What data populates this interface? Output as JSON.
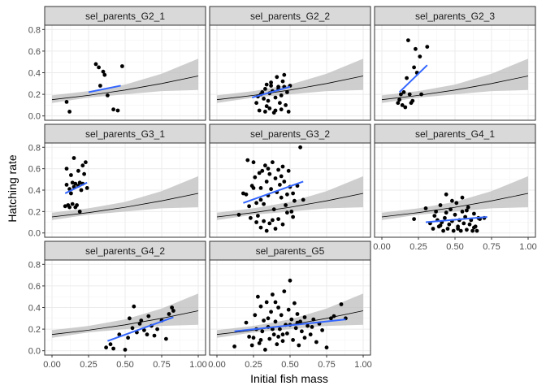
{
  "chart_data": {
    "type": "scatter",
    "xlabel": "Initial fish mass",
    "ylabel": "Hatching rate",
    "xlim": [
      0.0,
      1.0
    ],
    "ylim": [
      0.0,
      0.8
    ],
    "x_ticks": [
      0.0,
      0.25,
      0.5,
      0.75,
      1.0
    ],
    "x_tick_labels": [
      "0.00",
      "0.25",
      "0.50",
      "0.75",
      "1.00"
    ],
    "y_ticks": [
      0.0,
      0.2,
      0.4,
      0.6,
      0.8
    ],
    "y_tick_labels": [
      "0.0",
      "0.2",
      "0.4",
      "0.6",
      "0.8"
    ],
    "grid": true,
    "colors": {
      "points": "#000000",
      "group_fit": "#3366FF",
      "overall_fit": "#000000",
      "ribbon": "#BEBEBE",
      "strip": "#D9D9D9"
    },
    "overall_fit": {
      "x": [
        0.0,
        0.25,
        0.5,
        0.75,
        1.0
      ],
      "y": [
        0.15,
        0.19,
        0.24,
        0.3,
        0.37
      ],
      "lower": [
        0.12,
        0.17,
        0.2,
        0.23,
        0.24
      ],
      "upper": [
        0.19,
        0.23,
        0.29,
        0.39,
        0.53
      ]
    },
    "panels": [
      {
        "name": "sel_parents_G2_1",
        "points": [
          [
            0.1,
            0.13
          ],
          [
            0.12,
            0.04
          ],
          [
            0.3,
            0.48
          ],
          [
            0.32,
            0.45
          ],
          [
            0.35,
            0.41
          ],
          [
            0.36,
            0.38
          ],
          [
            0.33,
            0.28
          ],
          [
            0.38,
            0.19
          ],
          [
            0.42,
            0.06
          ],
          [
            0.45,
            0.05
          ],
          [
            0.48,
            0.46
          ]
        ],
        "fit": [
          [
            0.25,
            0.22
          ],
          [
            0.47,
            0.28
          ]
        ]
      },
      {
        "name": "sel_parents_G2_2",
        "points": [
          [
            0.27,
            0.12
          ],
          [
            0.28,
            0.18
          ],
          [
            0.29,
            0.05
          ],
          [
            0.3,
            0.2
          ],
          [
            0.31,
            0.22
          ],
          [
            0.32,
            0.16
          ],
          [
            0.33,
            0.25
          ],
          [
            0.34,
            0.09
          ],
          [
            0.35,
            0.14
          ],
          [
            0.36,
            0.07
          ],
          [
            0.37,
            0.28
          ],
          [
            0.37,
            0.31
          ],
          [
            0.38,
            0.23
          ],
          [
            0.39,
            0.03
          ],
          [
            0.4,
            0.17
          ],
          [
            0.41,
            0.36
          ],
          [
            0.42,
            0.27
          ],
          [
            0.43,
            0.12
          ],
          [
            0.44,
            0.19
          ],
          [
            0.45,
            0.32
          ],
          [
            0.46,
            0.38
          ],
          [
            0.47,
            0.1
          ],
          [
            0.48,
            0.22
          ],
          [
            0.49,
            0.04
          ],
          [
            0.5,
            0.28
          ],
          [
            0.33,
            0.04
          ],
          [
            0.34,
            0.29
          ],
          [
            0.36,
            0.21
          ],
          [
            0.4,
            0.05
          ],
          [
            0.42,
            0.25
          ],
          [
            0.44,
            0.06
          ],
          [
            0.46,
            0.27
          ]
        ],
        "fit": [
          [
            0.24,
            0.17
          ],
          [
            0.5,
            0.27
          ]
        ]
      },
      {
        "name": "sel_parents_G2_3",
        "points": [
          [
            0.11,
            0.12
          ],
          [
            0.12,
            0.15
          ],
          [
            0.13,
            0.2
          ],
          [
            0.14,
            0.1
          ],
          [
            0.15,
            0.22
          ],
          [
            0.16,
            0.08
          ],
          [
            0.17,
            0.35
          ],
          [
            0.18,
            0.7
          ],
          [
            0.19,
            0.2
          ],
          [
            0.2,
            0.12
          ],
          [
            0.21,
            0.14
          ],
          [
            0.22,
            0.45
          ],
          [
            0.23,
            0.62
          ],
          [
            0.24,
            0.4
          ],
          [
            0.26,
            0.55
          ],
          [
            0.27,
            0.2
          ],
          [
            0.31,
            0.64
          ]
        ],
        "fit": [
          [
            0.12,
            0.22
          ],
          [
            0.31,
            0.47
          ]
        ]
      },
      {
        "name": "sel_parents_G3_1",
        "points": [
          [
            0.09,
            0.25
          ],
          [
            0.1,
            0.45
          ],
          [
            0.11,
            0.26
          ],
          [
            0.12,
            0.41
          ],
          [
            0.13,
            0.37
          ],
          [
            0.14,
            0.47
          ],
          [
            0.15,
            0.7
          ],
          [
            0.16,
            0.46
          ],
          [
            0.17,
            0.26
          ],
          [
            0.18,
            0.58
          ],
          [
            0.19,
            0.47
          ],
          [
            0.2,
            0.4
          ],
          [
            0.21,
            0.63
          ],
          [
            0.22,
            0.55
          ],
          [
            0.23,
            0.66
          ],
          [
            0.1,
            0.6
          ],
          [
            0.12,
            0.24
          ],
          [
            0.14,
            0.27
          ],
          [
            0.16,
            0.24
          ],
          [
            0.19,
            0.2
          ],
          [
            0.21,
            0.46
          ],
          [
            0.24,
            0.42
          ],
          [
            0.13,
            0.54
          ],
          [
            0.15,
            0.43
          ],
          [
            0.18,
            0.44
          ]
        ],
        "fit": [
          [
            0.09,
            0.37
          ],
          [
            0.24,
            0.47
          ]
        ]
      },
      {
        "name": "sel_parents_G3_2",
        "points": [
          [
            0.15,
            0.17
          ],
          [
            0.18,
            0.37
          ],
          [
            0.2,
            0.36
          ],
          [
            0.21,
            0.68
          ],
          [
            0.22,
            0.25
          ],
          [
            0.23,
            0.14
          ],
          [
            0.24,
            0.44
          ],
          [
            0.25,
            0.66
          ],
          [
            0.26,
            0.52
          ],
          [
            0.27,
            0.28
          ],
          [
            0.28,
            0.16
          ],
          [
            0.29,
            0.56
          ],
          [
            0.3,
            0.42
          ],
          [
            0.31,
            0.58
          ],
          [
            0.32,
            0.27
          ],
          [
            0.33,
            0.63
          ],
          [
            0.34,
            0.48
          ],
          [
            0.35,
            0.35
          ],
          [
            0.36,
            0.55
          ],
          [
            0.37,
            0.41
          ],
          [
            0.38,
            0.66
          ],
          [
            0.39,
            0.22
          ],
          [
            0.4,
            0.51
          ],
          [
            0.41,
            0.38
          ],
          [
            0.42,
            0.59
          ],
          [
            0.43,
            0.45
          ],
          [
            0.44,
            0.33
          ],
          [
            0.45,
            0.62
          ],
          [
            0.46,
            0.48
          ],
          [
            0.47,
            0.26
          ],
          [
            0.48,
            0.36
          ],
          [
            0.49,
            0.58
          ],
          [
            0.5,
            0.43
          ],
          [
            0.51,
            0.2
          ],
          [
            0.52,
            0.37
          ],
          [
            0.53,
            0.3
          ],
          [
            0.55,
            0.44
          ],
          [
            0.57,
            0.8
          ],
          [
            0.59,
            0.31
          ],
          [
            0.3,
            0.05
          ],
          [
            0.32,
            0.11
          ],
          [
            0.34,
            0.02
          ],
          [
            0.36,
            0.09
          ],
          [
            0.38,
            0.12
          ],
          [
            0.4,
            0.04
          ],
          [
            0.42,
            0.13
          ],
          [
            0.27,
            0.1
          ],
          [
            0.45,
            0.08
          ],
          [
            0.48,
            0.19
          ],
          [
            0.52,
            0.15
          ],
          [
            0.44,
            0.53
          ],
          [
            0.35,
            0.6
          ],
          [
            0.3,
            0.31
          ],
          [
            0.25,
            0.42
          ]
        ],
        "fit": [
          [
            0.18,
            0.28
          ],
          [
            0.59,
            0.48
          ]
        ]
      },
      {
        "name": "sel_parents_G4_1",
        "points": [
          [
            0.22,
            0.13
          ],
          [
            0.3,
            0.23
          ],
          [
            0.33,
            0.09
          ],
          [
            0.35,
            0.04
          ],
          [
            0.36,
            0.16
          ],
          [
            0.37,
            0.2
          ],
          [
            0.38,
            0.12
          ],
          [
            0.39,
            0.06
          ],
          [
            0.4,
            0.26
          ],
          [
            0.41,
            0.1
          ],
          [
            0.42,
            0.02
          ],
          [
            0.43,
            0.14
          ],
          [
            0.44,
            0.19
          ],
          [
            0.45,
            0.04
          ],
          [
            0.46,
            0.08
          ],
          [
            0.47,
            0.22
          ],
          [
            0.48,
            0.11
          ],
          [
            0.49,
            0.02
          ],
          [
            0.5,
            0.17
          ],
          [
            0.51,
            0.28
          ],
          [
            0.52,
            0.06
          ],
          [
            0.53,
            0.12
          ],
          [
            0.54,
            0.02
          ],
          [
            0.55,
            0.2
          ],
          [
            0.56,
            0.09
          ],
          [
            0.57,
            0.15
          ],
          [
            0.58,
            0.03
          ],
          [
            0.59,
            0.24
          ],
          [
            0.6,
            0.08
          ],
          [
            0.61,
            0.12
          ],
          [
            0.62,
            0.02
          ],
          [
            0.63,
            0.18
          ],
          [
            0.64,
            0.06
          ],
          [
            0.65,
            0.02
          ],
          [
            0.66,
            0.14
          ],
          [
            0.67,
            0.13
          ],
          [
            0.7,
            0.14
          ],
          [
            0.55,
            0.33
          ],
          [
            0.44,
            0.36
          ],
          [
            0.48,
            0.3
          ],
          [
            0.58,
            0.21
          ],
          [
            0.4,
            0.07
          ],
          [
            0.52,
            0.04
          ],
          [
            0.63,
            0.05
          ]
        ],
        "fit": [
          [
            0.3,
            0.1
          ],
          [
            0.72,
            0.15
          ]
        ]
      },
      {
        "name": "sel_parents_G4_2",
        "points": [
          [
            0.37,
            0.03
          ],
          [
            0.4,
            0.06
          ],
          [
            0.42,
            0.02
          ],
          [
            0.46,
            0.15
          ],
          [
            0.5,
            0.01
          ],
          [
            0.52,
            0.12
          ],
          [
            0.53,
            0.3
          ],
          [
            0.55,
            0.21
          ],
          [
            0.56,
            0.41
          ],
          [
            0.58,
            0.17
          ],
          [
            0.6,
            0.25
          ],
          [
            0.61,
            0.28
          ],
          [
            0.63,
            0.19
          ],
          [
            0.65,
            0.15
          ],
          [
            0.66,
            0.32
          ],
          [
            0.68,
            0.23
          ],
          [
            0.7,
            0.14
          ],
          [
            0.72,
            0.2
          ],
          [
            0.75,
            0.28
          ],
          [
            0.78,
            0.11
          ],
          [
            0.8,
            0.34
          ],
          [
            0.82,
            0.4
          ],
          [
            0.83,
            0.37
          ]
        ],
        "fit": [
          [
            0.38,
            0.09
          ],
          [
            0.83,
            0.31
          ]
        ]
      },
      {
        "name": "sel_parents_G5",
        "points": [
          [
            0.12,
            0.04
          ],
          [
            0.2,
            0.26
          ],
          [
            0.22,
            0.13
          ],
          [
            0.24,
            0.05
          ],
          [
            0.25,
            0.12
          ],
          [
            0.26,
            0.33
          ],
          [
            0.27,
            0.2
          ],
          [
            0.28,
            0.5
          ],
          [
            0.29,
            0.07
          ],
          [
            0.3,
            0.41
          ],
          [
            0.31,
            0.18
          ],
          [
            0.32,
            0.28
          ],
          [
            0.33,
            0.01
          ],
          [
            0.34,
            0.45
          ],
          [
            0.35,
            0.22
          ],
          [
            0.36,
            0.11
          ],
          [
            0.37,
            0.36
          ],
          [
            0.38,
            0.52
          ],
          [
            0.39,
            0.15
          ],
          [
            0.4,
            0.27
          ],
          [
            0.41,
            0.06
          ],
          [
            0.42,
            0.4
          ],
          [
            0.43,
            0.2
          ],
          [
            0.44,
            0.33
          ],
          [
            0.45,
            0.09
          ],
          [
            0.46,
            0.55
          ],
          [
            0.47,
            0.24
          ],
          [
            0.48,
            0.16
          ],
          [
            0.49,
            0.38
          ],
          [
            0.5,
            0.65
          ],
          [
            0.51,
            0.29
          ],
          [
            0.52,
            0.1
          ],
          [
            0.53,
            0.44
          ],
          [
            0.54,
            0.21
          ],
          [
            0.55,
            0.34
          ],
          [
            0.56,
            0.05
          ],
          [
            0.57,
            0.27
          ],
          [
            0.58,
            0.18
          ],
          [
            0.6,
            0.31
          ],
          [
            0.62,
            0.23
          ],
          [
            0.64,
            0.15
          ],
          [
            0.66,
            0.29
          ],
          [
            0.68,
            0.08
          ],
          [
            0.7,
            0.25
          ],
          [
            0.72,
            0.19
          ],
          [
            0.75,
            0.03
          ],
          [
            0.78,
            0.3
          ],
          [
            0.8,
            0.32
          ],
          [
            0.85,
            0.43
          ],
          [
            0.88,
            0.3
          ],
          [
            0.3,
            0.1
          ],
          [
            0.4,
            0.45
          ],
          [
            0.45,
            0.15
          ],
          [
            0.35,
            0.3
          ],
          [
            0.5,
            0.24
          ],
          [
            0.6,
            0.12
          ],
          [
            0.55,
            0.26
          ],
          [
            0.65,
            0.22
          ],
          [
            0.42,
            0.13
          ],
          [
            0.38,
            0.2
          ]
        ],
        "fit": [
          [
            0.12,
            0.18
          ],
          [
            0.88,
            0.29
          ]
        ]
      }
    ]
  }
}
